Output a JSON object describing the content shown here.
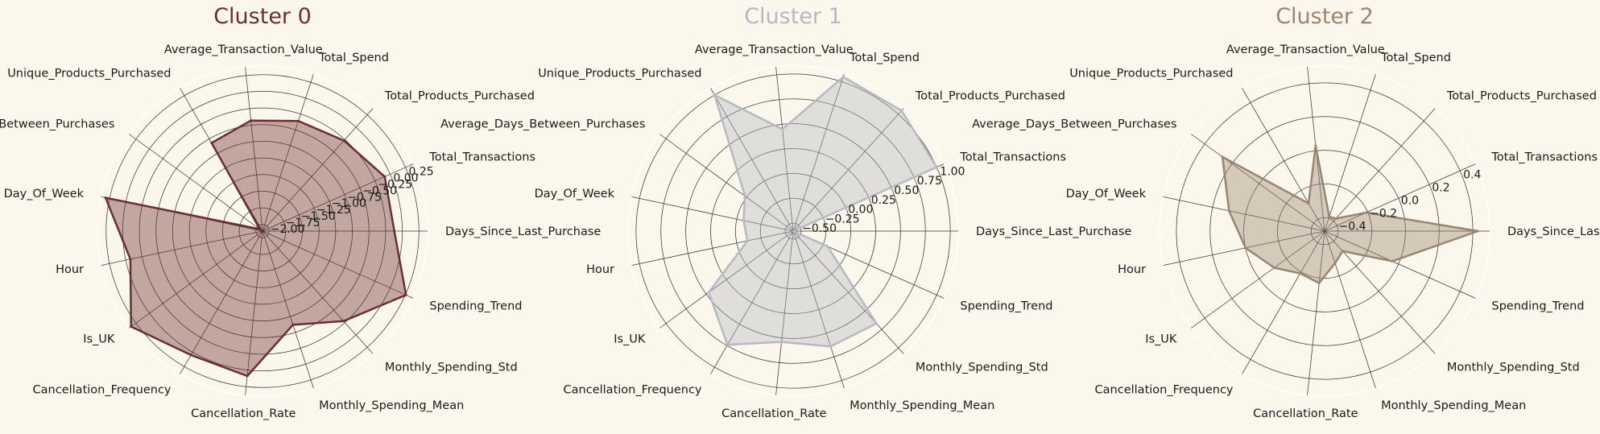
{
  "chart_data": [
    {
      "type": "radar",
      "title": "Cluster 0",
      "color": "#6b2f2f",
      "fill_opacity": 0.4,
      "categories": [
        "Days_Since_Last_Purchase",
        "Total_Transactions",
        "Total_Products_Purchased",
        "Total_Spend",
        "Average_Transaction_Value",
        "Unique_Products_Purchased",
        "Average_Days_Between_Purchases",
        "Day_Of_Week",
        "Hour",
        "Is_UK",
        "Cancellation_Frequency",
        "Cancellation_Rate",
        "Monthly_Spending_Mean",
        "Monthly_Spending_Std",
        "Spending_Trend"
      ],
      "rlim": [
        -2.1,
        0.38
      ],
      "rticks": [
        -2.0,
        -1.75,
        -1.5,
        -1.25,
        -1.0,
        -0.75,
        -0.5,
        -0.25,
        0.0,
        0.25
      ],
      "rtick_labels": [
        "−2.00",
        "−1.75",
        "−1.50",
        "−1.25",
        "−1.00",
        "−0.75",
        "−0.50",
        "−0.25",
        "0.00",
        "0.25"
      ],
      "values": [
        -0.12,
        -0.09,
        -0.27,
        -0.36,
        -0.43,
        -0.57,
        -2.05,
        0.31,
        -0.07,
        0.34,
        0.05,
        0.09,
        -0.62,
        -0.28,
        0.26
      ]
    },
    {
      "type": "radar",
      "title": "Cluster 1",
      "color": "#b5b9c3",
      "fill_opacity": 0.4,
      "categories": [
        "Days_Since_Last_Purchase",
        "Total_Transactions",
        "Total_Products_Purchased",
        "Total_Spend",
        "Average_Transaction_Value",
        "Unique_Products_Purchased",
        "Average_Days_Between_Purchases",
        "Day_Of_Week",
        "Hour",
        "Is_UK",
        "Cancellation_Frequency",
        "Cancellation_Rate",
        "Monthly_Spending_Mean",
        "Monthly_Spending_Std",
        "Spending_Trend"
      ],
      "rlim": [
        -0.58,
        1.08
      ],
      "rticks": [
        -0.5,
        -0.25,
        0.0,
        0.25,
        0.5,
        0.75,
        1.0
      ],
      "rtick_labels": [
        "−0.50",
        "−0.25",
        "0.00",
        "0.25",
        "0.50",
        "0.75",
        "1.00"
      ],
      "values": [
        -0.58,
        1.0,
        1.05,
        1.05,
        0.45,
        1.0,
        0.02,
        -0.07,
        -0.11,
        0.47,
        0.74,
        0.54,
        0.64,
        0.67,
        -0.2
      ]
    },
    {
      "type": "radar",
      "title": "Cluster 2",
      "color": "#9b8470",
      "fill_opacity": 0.4,
      "categories": [
        "Days_Since_Last_Purchase",
        "Total_Transactions",
        "Total_Products_Purchased",
        "Total_Spend",
        "Average_Transaction_Value",
        "Unique_Products_Purchased",
        "Average_Days_Between_Purchases",
        "Day_Of_Week",
        "Hour",
        "Is_UK",
        "Cancellation_Frequency",
        "Cancellation_Rate",
        "Monthly_Spending_Mean",
        "Monthly_Spending_Std",
        "Spending_Trend"
      ],
      "rlim": [
        -0.48,
        0.5
      ],
      "rticks": [
        -0.4,
        -0.2,
        0.0,
        0.2,
        0.4
      ],
      "rtick_labels": [
        "−0.4",
        "−0.2",
        "0.0",
        "0.2",
        "0.4"
      ],
      "values": [
        0.43,
        -0.21,
        -0.38,
        -0.39,
        0.03,
        -0.29,
        0.27,
        0.1,
        0.0,
        -0.11,
        -0.19,
        -0.17,
        -0.28,
        -0.32,
        -0.04
      ]
    }
  ]
}
